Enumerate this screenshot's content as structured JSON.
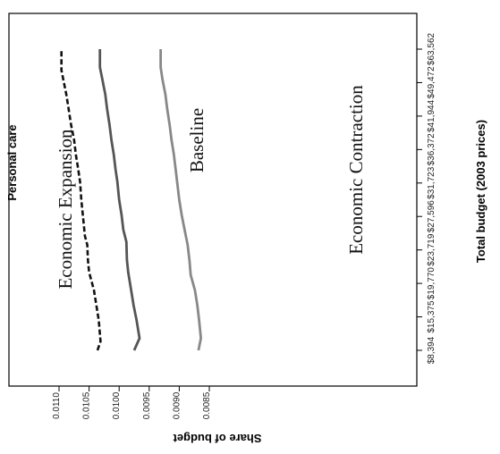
{
  "panel_title": "Personal care",
  "chart_data": {
    "type": "line",
    "title": "Personal care",
    "xlabel": "Total budget (2003 prices)",
    "ylabel": "Share of budget",
    "categories": [
      "$8,394",
      "$15,375",
      "$19,770",
      "$23,719",
      "$27,596",
      "$31,723",
      "$36,372",
      "$41,944",
      "$49,472",
      "$63,562"
    ],
    "ylim": [
      0.0083,
      0.0111
    ],
    "yticks": [
      "0.0085",
      "0.0090",
      "0.0095",
      "0.0100",
      "0.0105",
      "0.0110"
    ],
    "series": [
      {
        "name": "Economic Expansion",
        "style": "dashed",
        "color": "#111111",
        "x": [
          0,
          0.3,
          1,
          1.5,
          2,
          2.6,
          3,
          3.5,
          3.8,
          4.2,
          5,
          5.6,
          6,
          6.5,
          7,
          7.5,
          8,
          8.5,
          9,
          9.3,
          9.5,
          10
        ],
        "values": [
          0.01036,
          0.01031,
          0.01034,
          0.01038,
          0.01042,
          0.0105,
          0.01052,
          0.01053,
          0.01057,
          0.01059,
          0.01063,
          0.01065,
          0.01068,
          0.01072,
          0.01075,
          0.0108,
          0.01084,
          0.01088,
          0.01093,
          0.01096,
          0.01096,
          0.01096
        ]
      },
      {
        "name": "Baseline",
        "style": "solid",
        "color": "#555555",
        "x": [
          0,
          0.4,
          1,
          1.5,
          2,
          2.6,
          3,
          3.6,
          4,
          4.5,
          5,
          5.6,
          6,
          6.5,
          7,
          7.5,
          8,
          8.5,
          9,
          9.4,
          10
        ],
        "values": [
          0.00975,
          0.00966,
          0.00971,
          0.00976,
          0.0098,
          0.00985,
          0.00987,
          0.00988,
          0.00993,
          0.00996,
          0.01,
          0.01003,
          0.01006,
          0.01009,
          0.01013,
          0.01016,
          0.0102,
          0.01023,
          0.01028,
          0.01032,
          0.01032
        ]
      },
      {
        "name": "Economic Contraction",
        "style": "solid",
        "color": "#888888",
        "x": [
          0,
          0.4,
          1,
          1.5,
          2,
          2.5,
          3,
          3.5,
          4,
          4.5,
          5,
          5.5,
          6,
          6.5,
          7,
          7.5,
          8,
          8.5,
          9,
          9.4,
          10
        ],
        "values": [
          0.00868,
          0.00864,
          0.00867,
          0.0087,
          0.00874,
          0.00881,
          0.00883,
          0.00886,
          0.00891,
          0.00896,
          0.009,
          0.00903,
          0.00906,
          0.00909,
          0.00913,
          0.00916,
          0.0092,
          0.00923,
          0.00928,
          0.00931,
          0.00931
        ]
      }
    ],
    "grid": false,
    "legend": "none"
  }
}
